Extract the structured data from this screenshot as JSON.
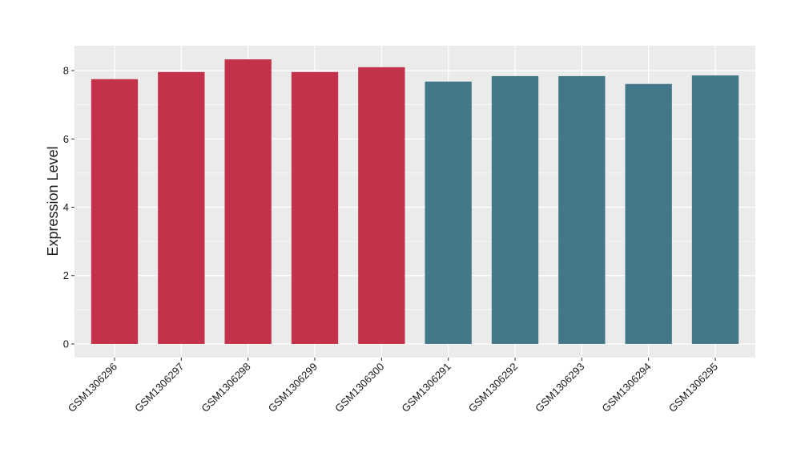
{
  "chart_data": {
    "type": "bar",
    "y_label": "Expression Level",
    "categories": [
      "GSM1306296",
      "GSM1306297",
      "GSM1306298",
      "GSM1306299",
      "GSM1306300",
      "GSM1306291",
      "GSM1306292",
      "GSM1306293",
      "GSM1306294",
      "GSM1306295"
    ],
    "values": [
      7.75,
      7.96,
      8.33,
      7.96,
      8.1,
      7.68,
      7.84,
      7.84,
      7.61,
      7.86
    ],
    "colors": [
      "#c3314a",
      "#c3314a",
      "#c3314a",
      "#c3314a",
      "#c3314a",
      "#43788a",
      "#43788a",
      "#43788a",
      "#43788a",
      "#43788a"
    ],
    "ylim": [
      -0.4,
      8.73
    ],
    "yticks": [
      0,
      2,
      4,
      6,
      8
    ],
    "grid": true
  }
}
